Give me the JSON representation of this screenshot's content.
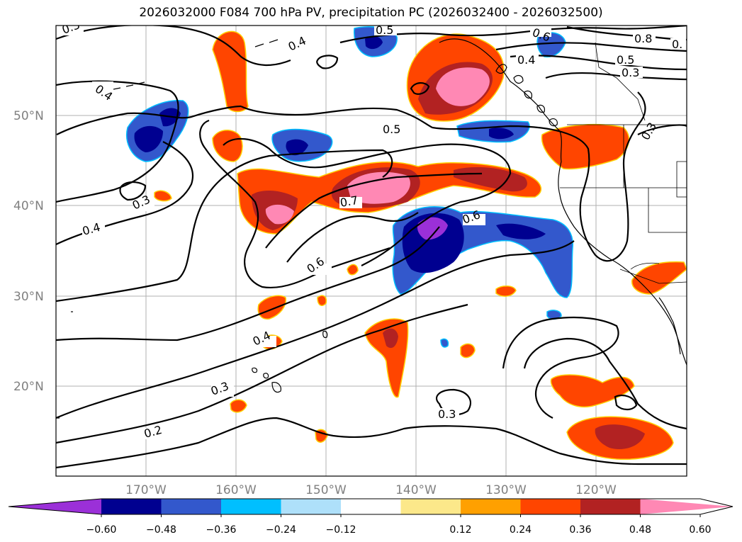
{
  "title": "2026032000 F084 700 hPa PV, precipitation PC (2026032400 - 2026032500)",
  "latitude_labels": [
    "50°N",
    "40°N",
    "30°N",
    "20°N"
  ],
  "longitude_labels": [
    "170°W",
    "160°W",
    "150°W",
    "140°W",
    "130°W",
    "120°W"
  ],
  "contour_labels": [
    "0.3",
    "0.5",
    "0.4",
    "0.6",
    "0.8",
    "0.",
    "0.4",
    "0.5",
    "0.3",
    "0.5",
    "0.4",
    "0.3",
    "0.4",
    "0.7",
    "0.6",
    "0.6",
    "0.3",
    "0.4",
    "0.3",
    "0.2",
    "0.3"
  ],
  "colorbar": {
    "tick_labels": [
      "−0.60",
      "−0.48",
      "−0.36",
      "−0.24",
      "−0.12",
      "0.12",
      "0.24",
      "0.36",
      "0.48",
      "0.60"
    ],
    "colors": [
      "#9b30d8",
      "#000090",
      "#3358cc",
      "#00bfff",
      "#aee0fa",
      "#ffffff",
      "#fce88a",
      "#ffa000",
      "#ff4500",
      "#b22222",
      "#ff88b4"
    ]
  }
}
